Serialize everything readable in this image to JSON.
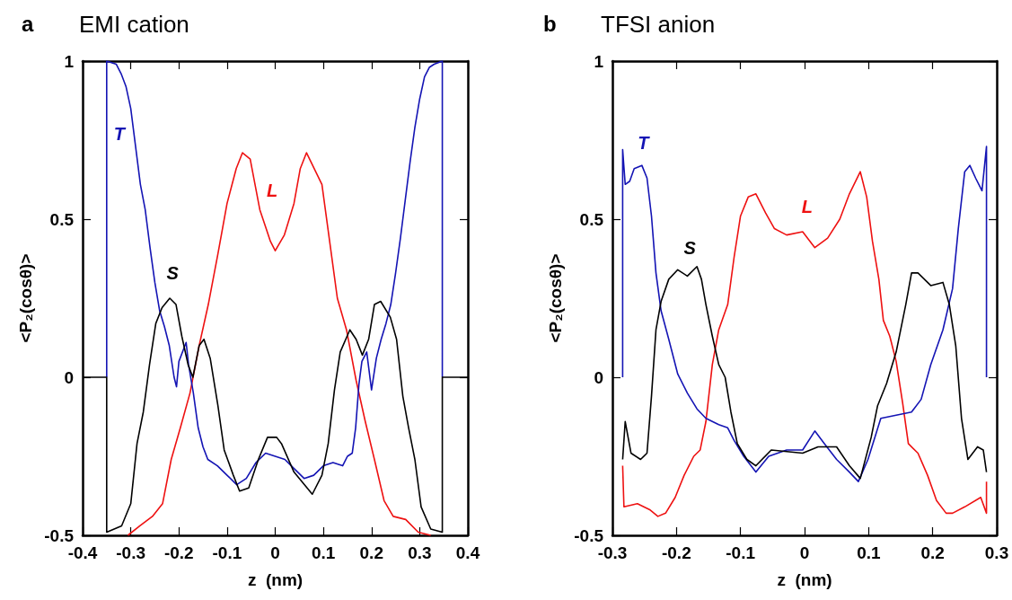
{
  "chart_data": [
    {
      "type": "line",
      "title": "EMI cation",
      "xlabel": "z  (nm)",
      "ylabel": "<P₂(cosθ)>",
      "marker": "none",
      "line_style": "solid",
      "xlim": [
        -0.4,
        0.4
      ],
      "xticks": [
        -0.4,
        -0.3,
        -0.2,
        -0.1,
        0,
        0.1,
        0.2,
        0.3,
        0.4
      ],
      "ylim": [
        -0.5,
        1
      ],
      "yticks": [
        -0.5,
        0,
        0.5,
        1
      ],
      "annotations": [
        "a"
      ],
      "series": [
        {
          "name": "L",
          "color": "#ee1111",
          "x": [
            -0.306,
            -0.281,
            -0.255,
            -0.234,
            -0.216,
            -0.197,
            -0.177,
            -0.158,
            -0.139,
            -0.119,
            -0.1,
            -0.081,
            -0.068,
            -0.052,
            -0.032,
            -0.01,
            0,
            0.019,
            0.039,
            0.052,
            0.065,
            0.097,
            0.113,
            0.129,
            0.148,
            0.168,
            0.187,
            0.206,
            0.226,
            0.245,
            0.271,
            0.297,
            0.323
          ],
          "values": [
            -0.5,
            -0.47,
            -0.44,
            -0.4,
            -0.26,
            -0.16,
            -0.05,
            0.1,
            0.23,
            0.39,
            0.55,
            0.66,
            0.71,
            0.69,
            0.53,
            0.43,
            0.4,
            0.45,
            0.55,
            0.66,
            0.71,
            0.61,
            0.43,
            0.25,
            0.15,
            -0.01,
            -0.14,
            -0.26,
            -0.39,
            -0.44,
            -0.45,
            -0.49,
            -0.5
          ]
        },
        {
          "name": "T",
          "color": "#1414b4",
          "x": [
            -0.35,
            -0.35,
            -0.33,
            -0.32,
            -0.31,
            -0.3,
            -0.29,
            -0.28,
            -0.27,
            -0.26,
            -0.25,
            -0.24,
            -0.23,
            -0.22,
            -0.21,
            -0.205,
            -0.2,
            -0.19,
            -0.185,
            -0.18,
            -0.17,
            -0.16,
            -0.15,
            -0.14,
            -0.12,
            -0.1,
            -0.08,
            -0.06,
            -0.04,
            -0.02,
            0,
            0.02,
            0.04,
            0.06,
            0.08,
            0.1,
            0.12,
            0.14,
            0.15,
            0.16,
            0.167,
            0.174,
            0.18,
            0.19,
            0.2,
            0.21,
            0.22,
            0.23,
            0.24,
            0.25,
            0.26,
            0.27,
            0.28,
            0.29,
            0.3,
            0.31,
            0.32,
            0.33,
            0.347,
            0.347
          ],
          "values": [
            0,
            1,
            0.99,
            0.96,
            0.92,
            0.85,
            0.73,
            0.61,
            0.53,
            0.41,
            0.3,
            0.21,
            0.16,
            0.1,
            0,
            -0.03,
            0.05,
            0.09,
            0.11,
            0.04,
            -0.05,
            -0.16,
            -0.22,
            -0.26,
            -0.28,
            -0.31,
            -0.34,
            -0.32,
            -0.27,
            -0.24,
            -0.25,
            -0.26,
            -0.29,
            -0.32,
            -0.31,
            -0.28,
            -0.27,
            -0.28,
            -0.25,
            -0.24,
            -0.16,
            -0.02,
            0.05,
            0.08,
            -0.04,
            0.06,
            0.12,
            0.17,
            0.23,
            0.33,
            0.44,
            0.56,
            0.68,
            0.79,
            0.88,
            0.95,
            0.98,
            0.99,
            1,
            0
          ]
        },
        {
          "name": "S",
          "color": "#000000",
          "x": [
            -0.4,
            -0.35,
            -0.35,
            -0.319,
            -0.3,
            -0.287,
            -0.274,
            -0.261,
            -0.248,
            -0.235,
            -0.219,
            -0.206,
            -0.194,
            -0.181,
            -0.171,
            -0.158,
            -0.148,
            -0.135,
            -0.119,
            -0.106,
            -0.087,
            -0.074,
            -0.055,
            -0.035,
            -0.016,
            0.003,
            0.013,
            0.039,
            0.077,
            0.097,
            0.11,
            0.123,
            0.135,
            0.155,
            0.168,
            0.181,
            0.194,
            0.206,
            0.219,
            0.239,
            0.252,
            0.265,
            0.277,
            0.29,
            0.303,
            0.323,
            0.347,
            0.347,
            0.4
          ],
          "values": [
            0,
            0,
            -0.49,
            -0.47,
            -0.4,
            -0.21,
            -0.11,
            0.04,
            0.17,
            0.22,
            0.25,
            0.23,
            0.13,
            0.04,
            0,
            0.1,
            0.12,
            0.06,
            -0.09,
            -0.23,
            -0.31,
            -0.36,
            -0.35,
            -0.26,
            -0.19,
            -0.19,
            -0.21,
            -0.3,
            -0.37,
            -0.31,
            -0.21,
            -0.04,
            0.08,
            0.15,
            0.12,
            0.07,
            0.12,
            0.23,
            0.24,
            0.19,
            0.12,
            -0.06,
            -0.16,
            -0.26,
            -0.41,
            -0.48,
            -0.49,
            0,
            0
          ]
        }
      ]
    },
    {
      "type": "line",
      "title": "TFSI anion",
      "xlabel": "z  (nm)",
      "ylabel": "<P₂(cosθ)>",
      "marker": "none",
      "line_style": "solid",
      "xlim": [
        -0.3,
        0.3
      ],
      "xticks": [
        -0.3,
        -0.2,
        -0.1,
        0,
        0.1,
        0.2,
        0.3
      ],
      "ylim": [
        -0.5,
        1
      ],
      "yticks": [
        -0.5,
        0,
        0.5,
        1
      ],
      "annotations": [
        "b"
      ],
      "series": [
        {
          "name": "L",
          "color": "#ee1111",
          "x": [
            -0.284,
            -0.282,
            -0.261,
            -0.241,
            -0.229,
            -0.217,
            -0.202,
            -0.188,
            -0.173,
            -0.163,
            -0.154,
            -0.144,
            -0.134,
            -0.12,
            -0.11,
            -0.1,
            -0.088,
            -0.076,
            -0.061,
            -0.047,
            -0.028,
            -0.003,
            0.016,
            0.036,
            0.055,
            0.07,
            0.087,
            0.097,
            0.106,
            0.116,
            0.123,
            0.133,
            0.143,
            0.153,
            0.162,
            0.177,
            0.192,
            0.206,
            0.221,
            0.231,
            0.25,
            0.275,
            0.284,
            0.284
          ],
          "values": [
            -0.28,
            -0.41,
            -0.4,
            -0.42,
            -0.44,
            -0.43,
            -0.38,
            -0.31,
            -0.25,
            -0.23,
            -0.14,
            0.04,
            0.15,
            0.23,
            0.38,
            0.51,
            0.57,
            0.58,
            0.52,
            0.47,
            0.45,
            0.46,
            0.41,
            0.44,
            0.5,
            0.58,
            0.65,
            0.57,
            0.43,
            0.31,
            0.18,
            0.13,
            0.05,
            -0.08,
            -0.21,
            -0.24,
            -0.31,
            -0.39,
            -0.43,
            -0.43,
            -0.41,
            -0.38,
            -0.43,
            -0.33
          ]
        },
        {
          "name": "T",
          "color": "#1414b4",
          "x": [
            -0.284,
            -0.284,
            -0.28,
            -0.273,
            -0.266,
            -0.254,
            -0.246,
            -0.239,
            -0.232,
            -0.224,
            -0.212,
            -0.198,
            -0.183,
            -0.168,
            -0.154,
            -0.134,
            -0.12,
            -0.11,
            -0.095,
            -0.076,
            -0.056,
            -0.028,
            -0.003,
            0.016,
            0.031,
            0.05,
            0.07,
            0.084,
            0.099,
            0.119,
            0.143,
            0.167,
            0.182,
            0.197,
            0.216,
            0.231,
            0.24,
            0.25,
            0.258,
            0.267,
            0.277,
            0.284,
            0.284
          ],
          "values": [
            0,
            0.72,
            0.61,
            0.62,
            0.66,
            0.67,
            0.63,
            0.51,
            0.33,
            0.21,
            0.12,
            0.01,
            -0.05,
            -0.1,
            -0.13,
            -0.15,
            -0.16,
            -0.2,
            -0.25,
            -0.3,
            -0.25,
            -0.23,
            -0.23,
            -0.17,
            -0.21,
            -0.26,
            -0.3,
            -0.33,
            -0.26,
            -0.13,
            -0.12,
            -0.11,
            -0.07,
            0.04,
            0.15,
            0.28,
            0.47,
            0.65,
            0.67,
            0.63,
            0.59,
            0.73,
            0
          ]
        },
        {
          "name": "S",
          "color": "#000000",
          "x": [
            -0.284,
            -0.28,
            -0.271,
            -0.256,
            -0.246,
            -0.239,
            -0.232,
            -0.224,
            -0.212,
            -0.198,
            -0.183,
            -0.168,
            -0.161,
            -0.154,
            -0.144,
            -0.134,
            -0.124,
            -0.115,
            -0.105,
            -0.09,
            -0.076,
            -0.052,
            -0.003,
            0.021,
            0.05,
            0.07,
            0.087,
            0.104,
            0.114,
            0.128,
            0.143,
            0.158,
            0.167,
            0.177,
            0.197,
            0.216,
            0.226,
            0.236,
            0.245,
            0.255,
            0.27,
            0.279,
            0.284
          ],
          "values": [
            -0.26,
            -0.14,
            -0.24,
            -0.26,
            -0.24,
            -0.06,
            0.15,
            0.24,
            0.31,
            0.34,
            0.32,
            0.35,
            0.31,
            0.23,
            0.13,
            0.04,
            0,
            -0.11,
            -0.21,
            -0.26,
            -0.28,
            -0.23,
            -0.24,
            -0.22,
            -0.22,
            -0.28,
            -0.32,
            -0.19,
            -0.09,
            -0.02,
            0.08,
            0.23,
            0.33,
            0.33,
            0.29,
            0.3,
            0.23,
            0.1,
            -0.13,
            -0.26,
            -0.22,
            -0.23,
            -0.3
          ]
        }
      ]
    }
  ]
}
